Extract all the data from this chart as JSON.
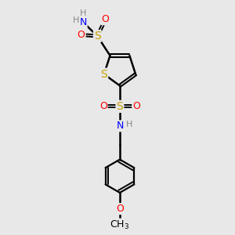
{
  "background_color": "#e8e8e8",
  "atom_colors": {
    "S_ring": "#c8a000",
    "S_sul": "#c8a000",
    "O": "#ff0000",
    "N": "#0000ff",
    "C": "#000000",
    "H": "#888888"
  },
  "bond_color": "#000000",
  "figsize": [
    3.0,
    3.0
  ],
  "dpi": 100,
  "xlim": [
    0,
    10
  ],
  "ylim": [
    0,
    10
  ]
}
